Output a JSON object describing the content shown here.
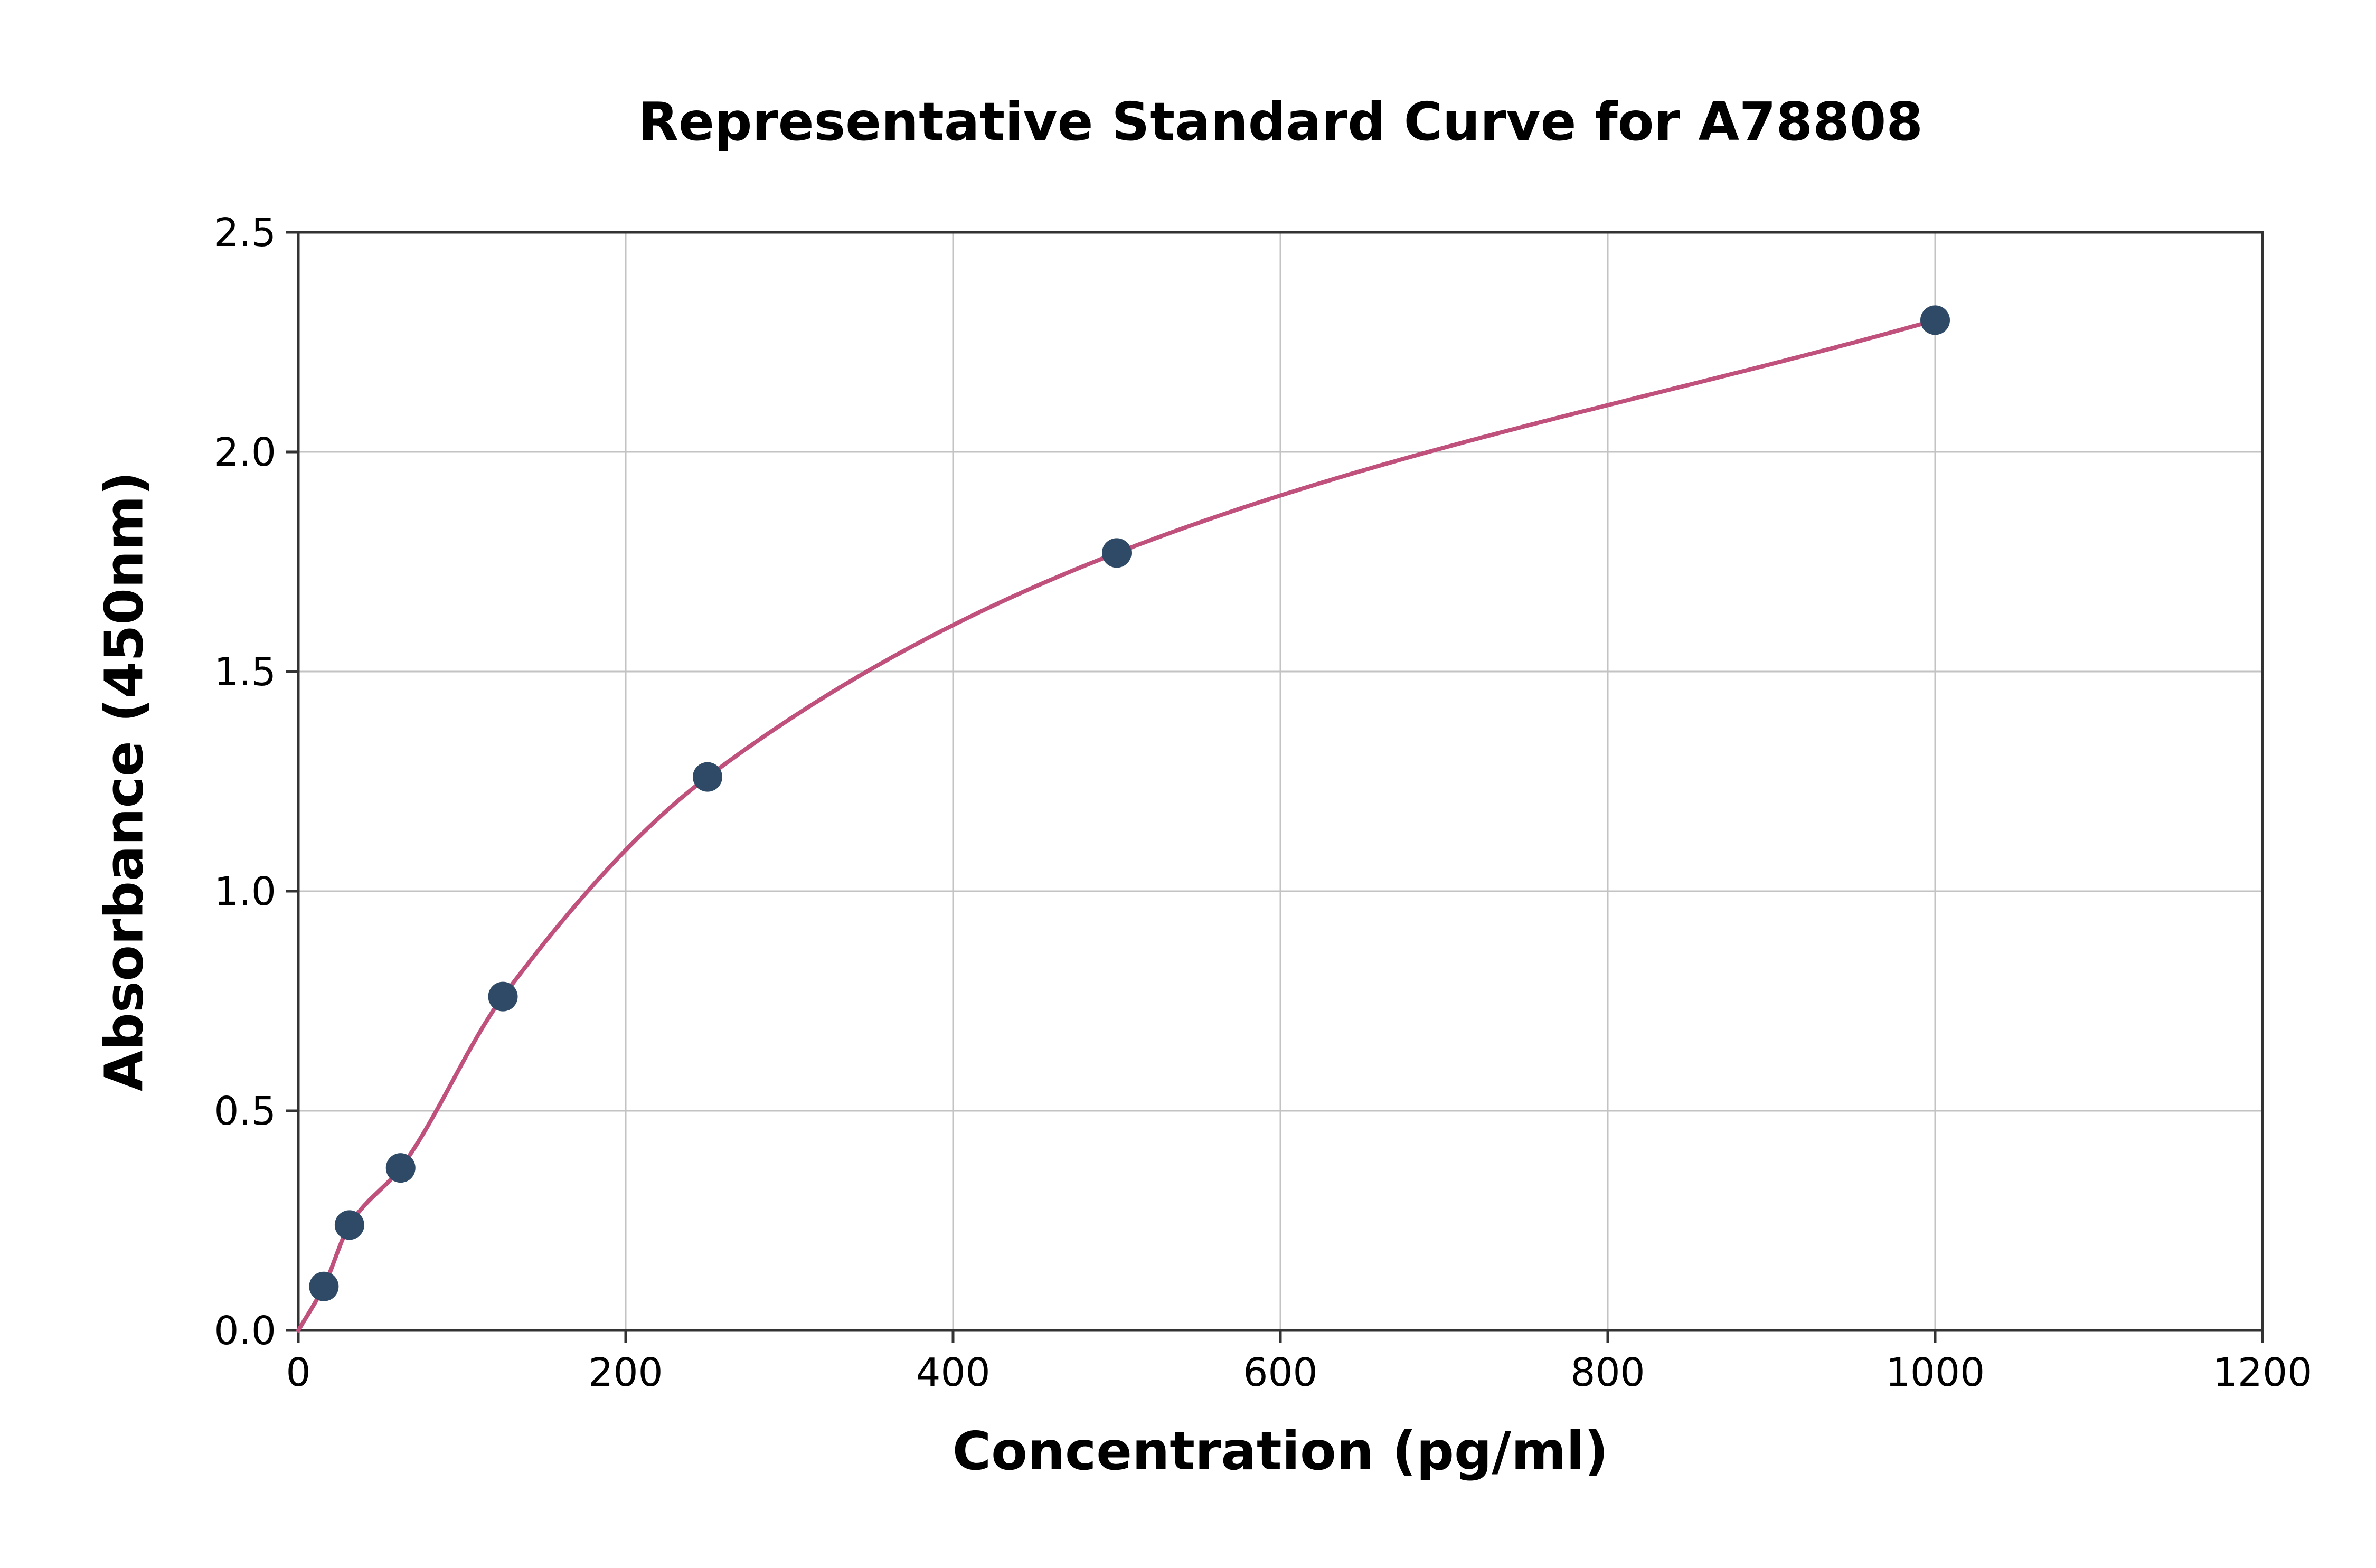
{
  "figure": {
    "background": "#ffffff"
  },
  "chart_data": {
    "type": "scatter",
    "title": "Representative Standard Curve for A78808",
    "xlabel": "Concentration (pg/ml)",
    "ylabel": "Absorbance (450nm)",
    "xlim": [
      0,
      1200
    ],
    "ylim": [
      0,
      2.5
    ],
    "x_ticks": [
      0,
      200,
      400,
      600,
      800,
      1000,
      1200
    ],
    "y_ticks": [
      0,
      0.5,
      1,
      1.5,
      2,
      2.5
    ],
    "y_tick_decimals": 1,
    "grid": true,
    "legend": false,
    "points": [
      {
        "x": 15.6,
        "y": 0.1
      },
      {
        "x": 31.25,
        "y": 0.24
      },
      {
        "x": 62.5,
        "y": 0.37
      },
      {
        "x": 125,
        "y": 0.76
      },
      {
        "x": 250,
        "y": 1.26
      },
      {
        "x": 500,
        "y": 1.77
      },
      {
        "x": 1000,
        "y": 2.3
      }
    ],
    "curve": {
      "kind": "smooth-fit-through-points",
      "anchor": {
        "x": 0,
        "y": 0
      },
      "x_end": 1000
    },
    "colors": {
      "point": "#2e4a66",
      "curve": "#c0517c",
      "grid": "#c3c3c3",
      "axis": "#333333",
      "text": "#000000"
    }
  }
}
